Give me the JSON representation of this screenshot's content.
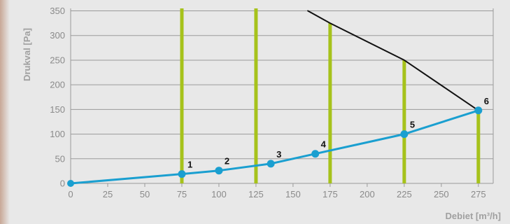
{
  "chart_data": {
    "type": "line",
    "xlabel": "Debiet [m³/h]",
    "ylabel": "Drukval [Pa]",
    "xlim": [
      0,
      285
    ],
    "ylim": [
      0,
      355
    ],
    "x_ticks": [
      0,
      25,
      50,
      75,
      100,
      125,
      150,
      175,
      200,
      225,
      250,
      275
    ],
    "y_ticks": [
      0,
      50,
      100,
      150,
      200,
      250,
      300,
      350
    ],
    "grid": true,
    "series": [
      {
        "role": "system-curve",
        "color": "#1a9fd0",
        "x": [
          0,
          75,
          100,
          135,
          165,
          225,
          275
        ],
        "y": [
          0,
          19,
          26,
          40,
          60,
          100,
          148
        ]
      },
      {
        "role": "fan-curve",
        "color": "#111111",
        "x": [
          160,
          175,
          225,
          275
        ],
        "y": [
          350,
          325,
          250,
          148
        ]
      }
    ],
    "markers": [
      {
        "label": "1",
        "x": 75,
        "y": 19
      },
      {
        "label": "2",
        "x": 100,
        "y": 26
      },
      {
        "label": "3",
        "x": 135,
        "y": 40
      },
      {
        "label": "4",
        "x": 165,
        "y": 60
      },
      {
        "label": "5",
        "x": 225,
        "y": 100
      },
      {
        "label": "6",
        "x": 275,
        "y": 148
      }
    ],
    "vertical_bars": {
      "color": "#a6c21b",
      "items": [
        {
          "x": 75,
          "top": 355
        },
        {
          "x": 125,
          "top": 355
        },
        {
          "x": 175,
          "top": 325
        },
        {
          "x": 225,
          "top": 250
        },
        {
          "x": 275,
          "top": 148
        }
      ]
    }
  }
}
